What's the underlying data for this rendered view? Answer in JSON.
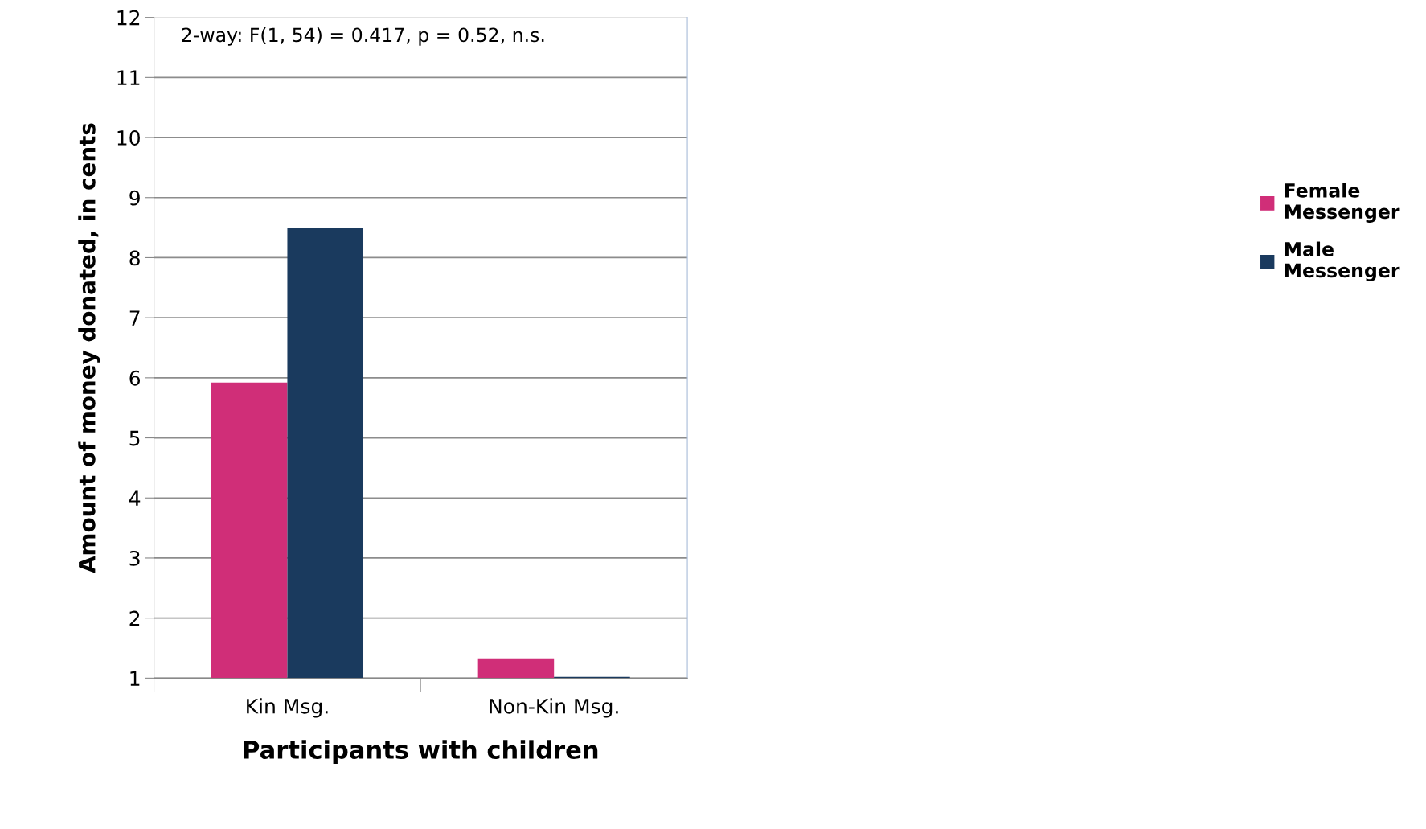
{
  "chart_data": {
    "type": "bar",
    "xlabel": "Participants with children",
    "ylabel": "Amount of money donated, in cents",
    "categories": [
      "Kin Msg.",
      "Non-Kin Msg."
    ],
    "series": [
      {
        "name": "Female Messenger",
        "color": "#d02e78",
        "values": [
          5.92,
          1.33
        ]
      },
      {
        "name": "Male Messenger",
        "color": "#1a3a5e",
        "values": [
          8.5,
          1.02
        ]
      }
    ],
    "ylim": [
      1,
      12
    ],
    "yticks": [
      1,
      2,
      3,
      4,
      5,
      6,
      7,
      8,
      9,
      10,
      11,
      12
    ],
    "grid": "y",
    "legend": "right",
    "annotations": [
      "2-way: F(1, 54) = 0.417, p = 0.52, n.s."
    ]
  }
}
